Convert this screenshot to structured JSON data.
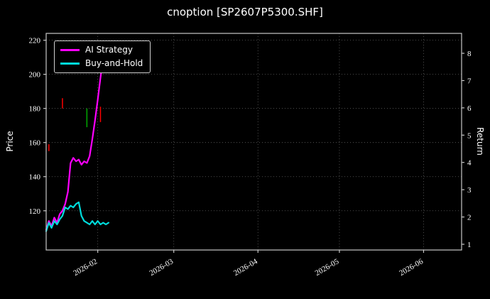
{
  "chart_data": {
    "type": "line",
    "title": "cnoption [SP2607P5300.SHF]",
    "ylabel_left": "Price",
    "ylabel_right": "Return",
    "background_color": "#000000",
    "text_color": "#ffffff",
    "spine_color": "#c8c8c8",
    "grid": true,
    "grid_color": "#5f5f5f",
    "legend_position": "upper-left",
    "x_range": [
      "2026-01-13",
      "2026-06-15"
    ],
    "price_range": [
      97,
      224
    ],
    "return_range": [
      0.79,
      8.73
    ],
    "price_ticks": [
      120,
      140,
      160,
      180,
      200,
      220
    ],
    "return_ticks": [
      1,
      2,
      3,
      4,
      5,
      6,
      7,
      8
    ],
    "x_ticks": [
      {
        "date": "2026-02-01",
        "label": "2026-02"
      },
      {
        "date": "2026-03-01",
        "label": "2026-03"
      },
      {
        "date": "2026-04-01",
        "label": "2026-04"
      },
      {
        "date": "2026-05-01",
        "label": "2026-05"
      },
      {
        "date": "2026-06-01",
        "label": "2026-06"
      }
    ],
    "series": [
      {
        "name": "AI Strategy",
        "color": "#ff00ff",
        "axis": "price",
        "points": [
          [
            "2026-01-13",
            109
          ],
          [
            "2026-01-14",
            114
          ],
          [
            "2026-01-15",
            111
          ],
          [
            "2026-01-16",
            116
          ],
          [
            "2026-01-17",
            113
          ],
          [
            "2026-01-18",
            118
          ],
          [
            "2026-01-19",
            120
          ],
          [
            "2026-01-20",
            124
          ],
          [
            "2026-01-21",
            131
          ],
          [
            "2026-01-22",
            148
          ],
          [
            "2026-01-23",
            151
          ],
          [
            "2026-01-24",
            149
          ],
          [
            "2026-01-25",
            150
          ],
          [
            "2026-01-26",
            147
          ],
          [
            "2026-01-27",
            149
          ],
          [
            "2026-01-28",
            148
          ],
          [
            "2026-01-29",
            152
          ],
          [
            "2026-01-30",
            162
          ],
          [
            "2026-01-31",
            173
          ],
          [
            "2026-02-01",
            185
          ],
          [
            "2026-02-02",
            198
          ],
          [
            "2026-02-03",
            210
          ],
          [
            "2026-02-04",
            215
          ],
          [
            "2026-02-05",
            215
          ]
        ]
      },
      {
        "name": "Buy-and-Hold",
        "color": "#00dcdc",
        "axis": "price",
        "points": [
          [
            "2026-01-13",
            108
          ],
          [
            "2026-01-14",
            113
          ],
          [
            "2026-01-15",
            110
          ],
          [
            "2026-01-16",
            114
          ],
          [
            "2026-01-17",
            112
          ],
          [
            "2026-01-18",
            115
          ],
          [
            "2026-01-19",
            117
          ],
          [
            "2026-01-20",
            122
          ],
          [
            "2026-01-21",
            121
          ],
          [
            "2026-01-22",
            123
          ],
          [
            "2026-01-23",
            122
          ],
          [
            "2026-01-24",
            124
          ],
          [
            "2026-01-25",
            125
          ],
          [
            "2026-01-26",
            117
          ],
          [
            "2026-01-27",
            114
          ],
          [
            "2026-01-28",
            113
          ],
          [
            "2026-01-29",
            112
          ],
          [
            "2026-01-30",
            114
          ],
          [
            "2026-01-31",
            112
          ],
          [
            "2026-02-01",
            114
          ],
          [
            "2026-02-02",
            112
          ],
          [
            "2026-02-03",
            113
          ],
          [
            "2026-02-04",
            112
          ],
          [
            "2026-02-05",
            113
          ]
        ]
      }
    ],
    "markers": [
      {
        "date": "2026-01-14",
        "low": 155,
        "high": 159,
        "color": "#ff0000"
      },
      {
        "date": "2026-01-19",
        "low": 180,
        "high": 186,
        "color": "#ff0000"
      },
      {
        "date": "2026-01-28",
        "low": 169,
        "high": 180,
        "color": "#00aa00"
      },
      {
        "date": "2026-02-02",
        "low": 172,
        "high": 181,
        "color": "#ff0000"
      }
    ]
  }
}
